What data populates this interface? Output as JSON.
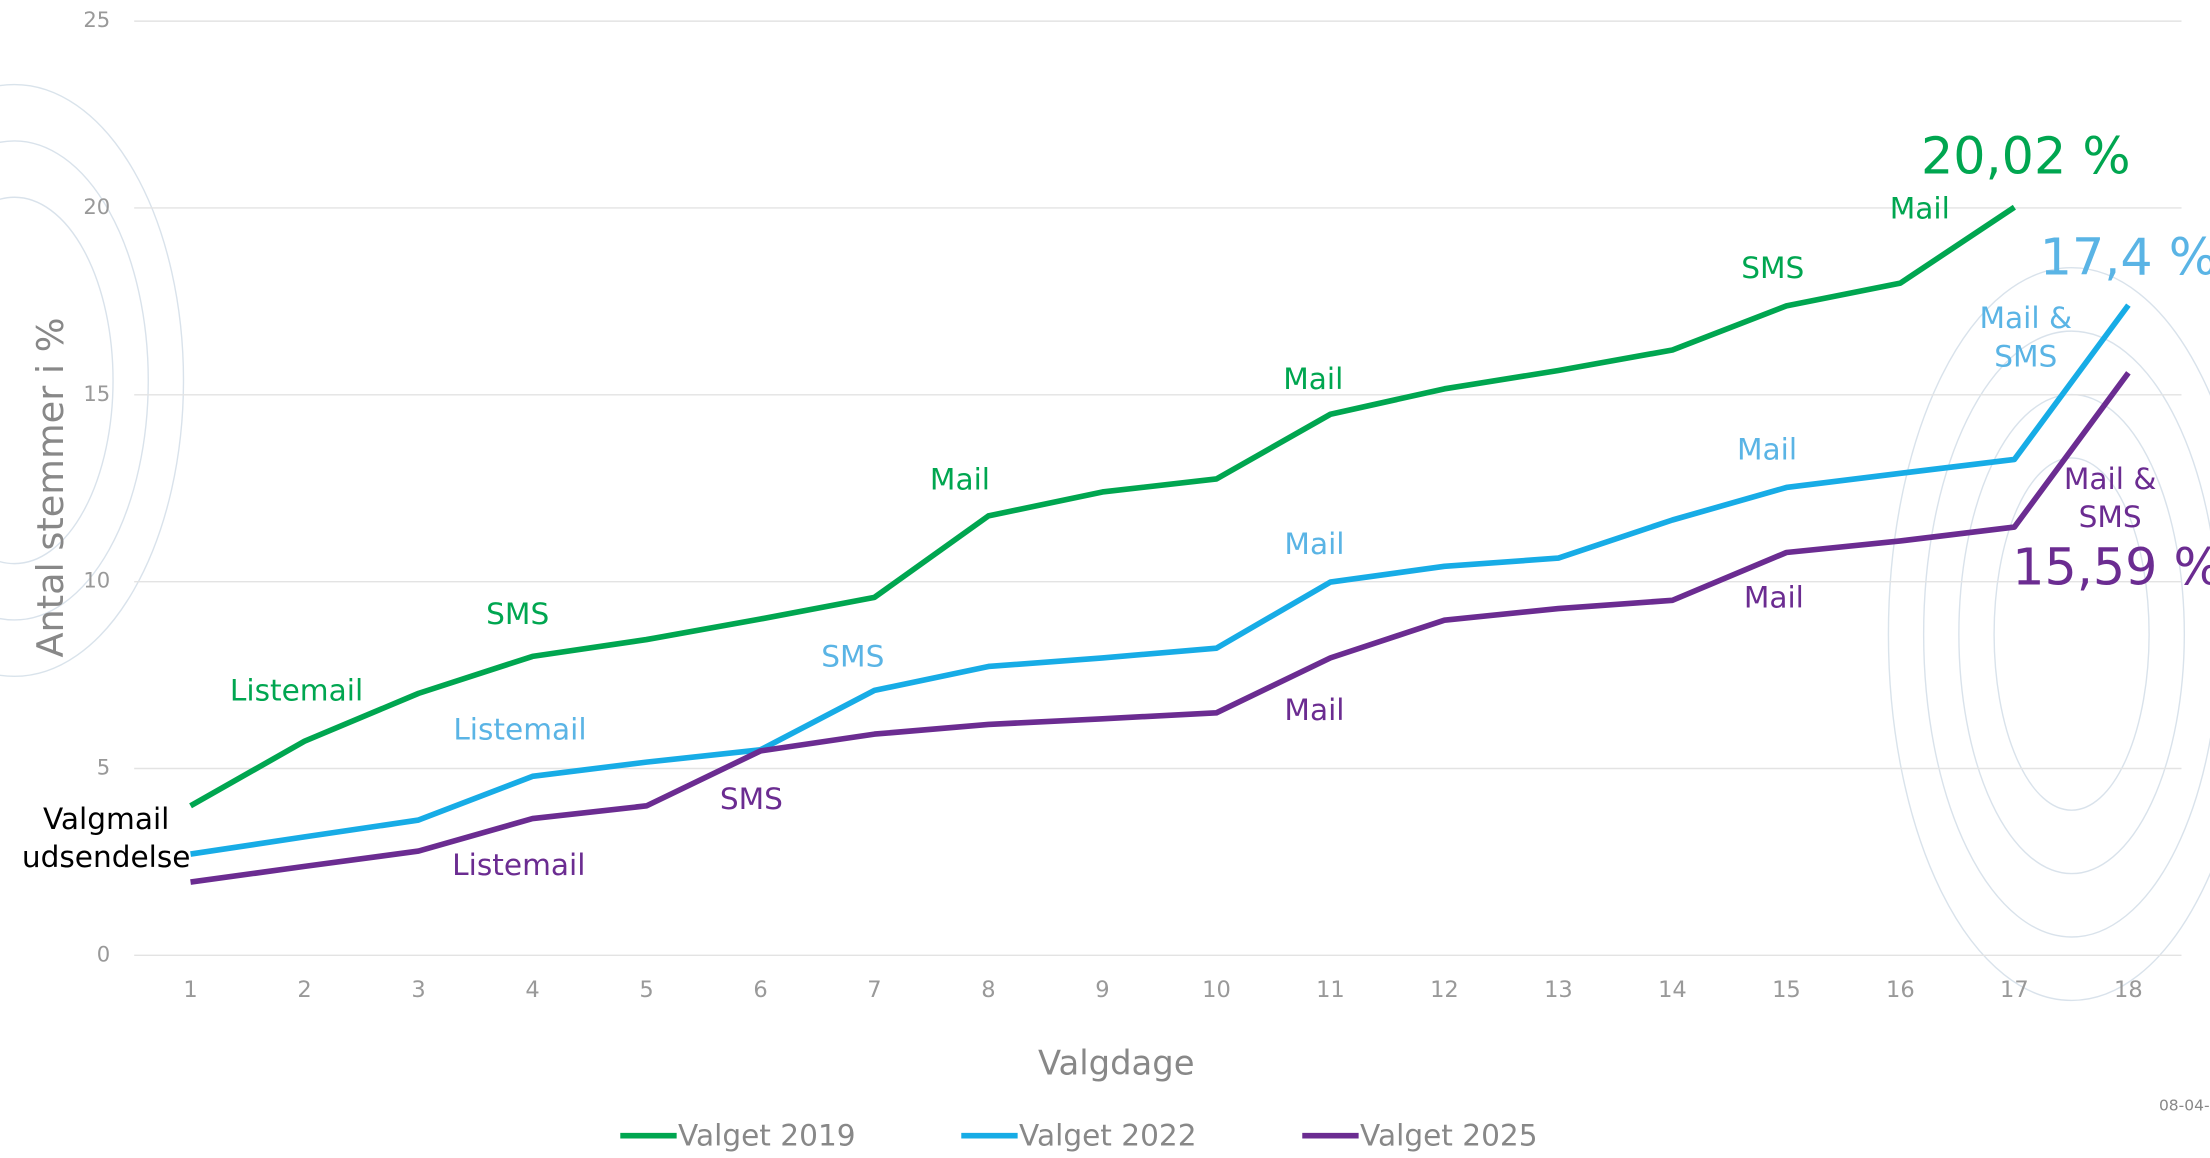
{
  "chart_data": {
    "type": "line",
    "y_label": "Antal stemmer i %",
    "x_label": "Valgdage",
    "footnote": "08-04-",
    "categories": [
      "1",
      "2",
      "3",
      "4",
      "5",
      "6",
      "7",
      "8",
      "9",
      "10",
      "11",
      "12",
      "13",
      "14",
      "15",
      "16",
      "17",
      "18"
    ],
    "ylim": [
      0,
      25
    ],
    "yticks": [
      0,
      5,
      10,
      15,
      20,
      25
    ],
    "grid": true,
    "series": [
      {
        "name": "Valget 2019",
        "color": "#00a650",
        "values": [
          4.0,
          5.73,
          7.01,
          8.0,
          8.45,
          9.0,
          9.58,
          11.76,
          12.4,
          12.75,
          14.48,
          15.16,
          15.65,
          16.2,
          17.38,
          17.99,
          20.02,
          null
        ],
        "annotations": [
          {
            "text": [
              "Listemail"
            ],
            "x": 1.93,
            "y": 7.05
          },
          {
            "text": [
              "SMS"
            ],
            "x": 3.87,
            "y": 9.09
          },
          {
            "text": [
              "Mail"
            ],
            "x": 7.75,
            "y": 12.7
          },
          {
            "text": [
              "Mail"
            ],
            "x": 10.85,
            "y": 15.38
          },
          {
            "text": [
              "SMS"
            ],
            "x": 14.88,
            "y": 18.36
          },
          {
            "text": [
              "Mail"
            ],
            "x": 16.17,
            "y": 19.95
          },
          {
            "text": [
              "20,02 %"
            ],
            "x": 17.1,
            "y": 21.3,
            "large": true
          }
        ]
      },
      {
        "name": "Valget 2022",
        "color": "#17ace6",
        "label_color": "#5ab4e5",
        "values": [
          2.71,
          3.17,
          3.62,
          4.79,
          5.17,
          5.5,
          7.09,
          7.73,
          7.96,
          8.22,
          9.99,
          10.41,
          10.63,
          11.65,
          12.52,
          12.9,
          13.27,
          17.4
        ],
        "annotations": [
          {
            "text": [
              "Listemail"
            ],
            "x": 3.89,
            "y": 6.0
          },
          {
            "text": [
              "SMS"
            ],
            "x": 6.81,
            "y": 7.96
          },
          {
            "text": [
              "Mail"
            ],
            "x": 10.86,
            "y": 10.97
          },
          {
            "text": [
              "Mail"
            ],
            "x": 14.83,
            "y": 13.5
          },
          {
            "text": [
              "Mail &",
              "SMS"
            ],
            "x": 17.1,
            "y": 16.5
          },
          {
            "text": [
              "17,4 %"
            ],
            "x": 18.0,
            "y": 18.6,
            "large": true
          }
        ]
      },
      {
        "name": "Valget 2025",
        "color": "#6b2c91",
        "values": [
          1.96,
          2.38,
          2.79,
          3.66,
          4.0,
          5.47,
          5.92,
          6.18,
          6.33,
          6.49,
          7.96,
          8.97,
          9.28,
          9.5,
          10.78,
          11.09,
          11.46,
          15.59
        ],
        "annotations": [
          {
            "text": [
              "Listemail"
            ],
            "x": 3.88,
            "y": 2.38
          },
          {
            "text": [
              "SMS"
            ],
            "x": 5.92,
            "y": 4.15
          },
          {
            "text": [
              "Mail"
            ],
            "x": 10.86,
            "y": 6.52
          },
          {
            "text": [
              "Mail"
            ],
            "x": 14.89,
            "y": 9.54
          },
          {
            "text": [
              "Mail &",
              "SMS"
            ],
            "x": 17.84,
            "y": 12.2
          },
          {
            "text": [
              "15,59 %"
            ],
            "x": 17.9,
            "y": 10.3,
            "large": true
          }
        ]
      }
    ],
    "annotations": [
      {
        "text": [
          "Valgmail",
          "udsendelse"
        ],
        "x": 0.26,
        "y": 3.1,
        "color": "#000000"
      }
    ]
  }
}
